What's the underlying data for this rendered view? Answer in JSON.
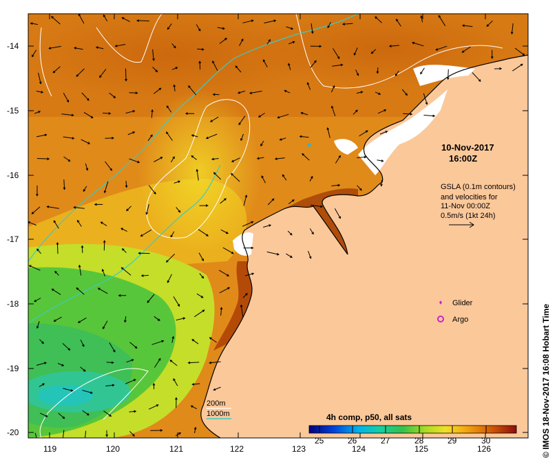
{
  "map": {
    "timestamp_date": "10-Nov-2017",
    "timestamp_time": "16:00Z",
    "gsla_lines": [
      "GSLA (0.1m contours)",
      "and velocities for",
      "11-Nov 00:00Z",
      "0.5m/s (1kt 24h)"
    ],
    "legend_glider": "Glider",
    "legend_argo": "Argo",
    "isobath_200": "200m",
    "isobath_1000": "1000m",
    "colorbar_title": "4h comp, p50, all sats",
    "colorbar_ticks": [
      "25",
      "26",
      "27",
      "28",
      "29",
      "30"
    ],
    "credit": "© IMOS 18-Nov-2017 16:08 Hobart Time",
    "lat_labels": [
      "-14",
      "-15",
      "-16",
      "-17",
      "-18",
      "-19",
      "-20"
    ],
    "lon_labels": [
      "119",
      "120",
      "121",
      "122",
      "123",
      "124",
      "125",
      "126"
    ],
    "colors": {
      "land": "#fbc89a",
      "isobath_200": "#ffffff",
      "isobath_1000": "#3ec9c2",
      "glider": "#cc22cc",
      "argo": "#cc22cc"
    }
  }
}
